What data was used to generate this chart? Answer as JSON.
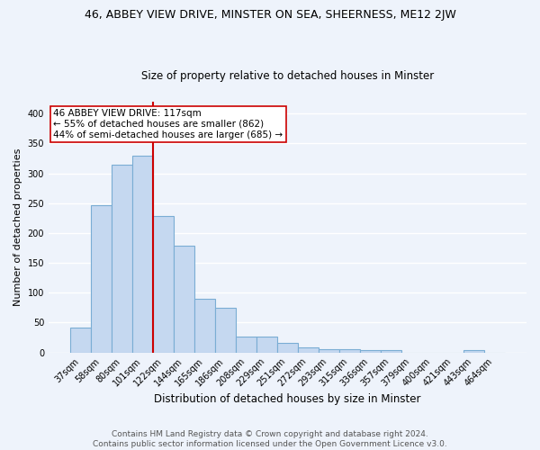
{
  "title": "46, ABBEY VIEW DRIVE, MINSTER ON SEA, SHEERNESS, ME12 2JW",
  "subtitle": "Size of property relative to detached houses in Minster",
  "xlabel": "Distribution of detached houses by size in Minster",
  "ylabel": "Number of detached properties",
  "categories": [
    "37sqm",
    "58sqm",
    "80sqm",
    "101sqm",
    "122sqm",
    "144sqm",
    "165sqm",
    "186sqm",
    "208sqm",
    "229sqm",
    "251sqm",
    "272sqm",
    "293sqm",
    "315sqm",
    "336sqm",
    "357sqm",
    "379sqm",
    "400sqm",
    "421sqm",
    "443sqm",
    "464sqm"
  ],
  "values": [
    42,
    246,
    315,
    330,
    228,
    179,
    90,
    75,
    27,
    27,
    16,
    9,
    5,
    5,
    4,
    4,
    0,
    0,
    0,
    4,
    0
  ],
  "bar_color": "#c5d8f0",
  "bar_edge_color": "#7aadd4",
  "vline_color": "#cc0000",
  "annotation_line1": "46 ABBEY VIEW DRIVE: 117sqm",
  "annotation_line2": "← 55% of detached houses are smaller (862)",
  "annotation_line3": "44% of semi-detached houses are larger (685) →",
  "annotation_box_color": "#ffffff",
  "annotation_box_edge": "#cc0000",
  "footer_text": "Contains HM Land Registry data © Crown copyright and database right 2024.\nContains public sector information licensed under the Open Government Licence v3.0.",
  "ylim": [
    0,
    420
  ],
  "background_color": "#eef3fb",
  "grid_color": "#ffffff",
  "title_fontsize": 9,
  "subtitle_fontsize": 8.5,
  "ylabel_fontsize": 8,
  "xlabel_fontsize": 8.5,
  "tick_fontsize": 7,
  "footer_fontsize": 6.5,
  "vline_x": 3.5
}
